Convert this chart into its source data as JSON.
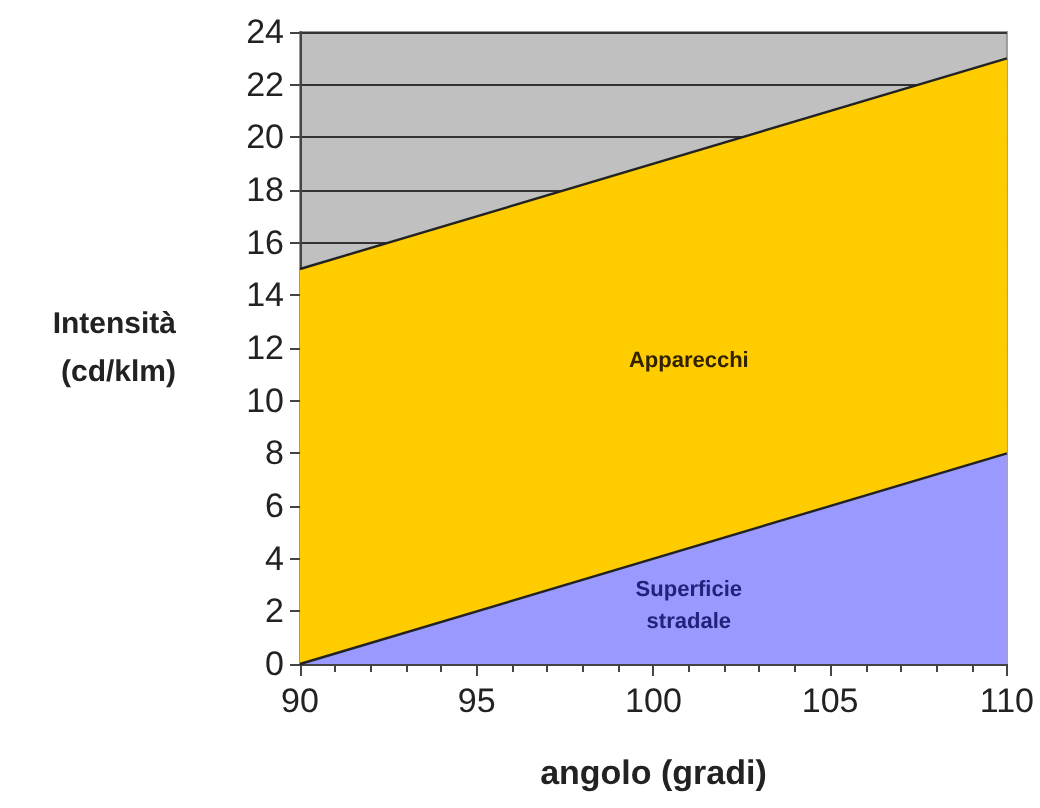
{
  "chart_data": {
    "type": "area",
    "stacked": true,
    "xlabel": "angolo (gradi)",
    "ylabel": "Intensità (cd/klm)",
    "x": [
      90,
      110
    ],
    "xlim": [
      90,
      110
    ],
    "xticks": [
      90,
      95,
      100,
      105,
      110
    ],
    "ylim": [
      0,
      24
    ],
    "yticks": [
      0,
      2,
      4,
      6,
      8,
      10,
      12,
      14,
      16,
      18,
      20,
      22,
      24
    ],
    "grid": "y",
    "legend": false,
    "series": [
      {
        "name": "Superficie stradale",
        "color": "#9999ff",
        "values": [
          0,
          8
        ]
      },
      {
        "name": "Apparecchi",
        "color": "#ffcc00",
        "values": [
          15,
          15
        ]
      }
    ]
  }
}
